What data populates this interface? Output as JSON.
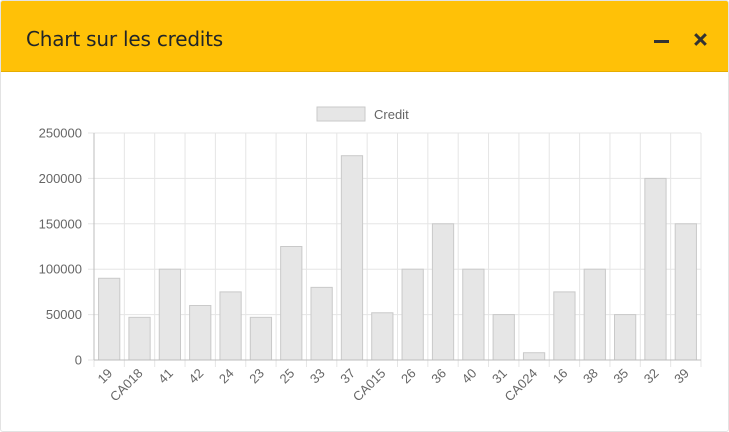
{
  "window": {
    "title": "Chart sur les credits"
  },
  "controls": {
    "minimize_icon": "minus-icon",
    "close_icon": "close-icon"
  },
  "chart_data": {
    "type": "bar",
    "legend": {
      "position": "top",
      "entries": [
        "Credit"
      ]
    },
    "categories": [
      "19",
      "CA018",
      "41",
      "42",
      "24",
      "23",
      "25",
      "33",
      "37",
      "CA015",
      "26",
      "36",
      "40",
      "31",
      "CA024",
      "16",
      "38",
      "35",
      "32",
      "39"
    ],
    "series": [
      {
        "name": "Credit",
        "values": [
          90000,
          47000,
          100000,
          60000,
          75000,
          47000,
          125000,
          80000,
          225000,
          52000,
          100000,
          150000,
          100000,
          50000,
          8000,
          75000,
          100000,
          50000,
          200000,
          150000
        ]
      }
    ],
    "ylim": [
      0,
      250000
    ],
    "yticks": [
      0,
      50000,
      100000,
      150000,
      200000,
      250000
    ],
    "grid": true,
    "colors": {
      "bar_fill": "#e6e6e6",
      "bar_stroke": "#c9c9c9",
      "grid": "#e5e5e5"
    }
  }
}
